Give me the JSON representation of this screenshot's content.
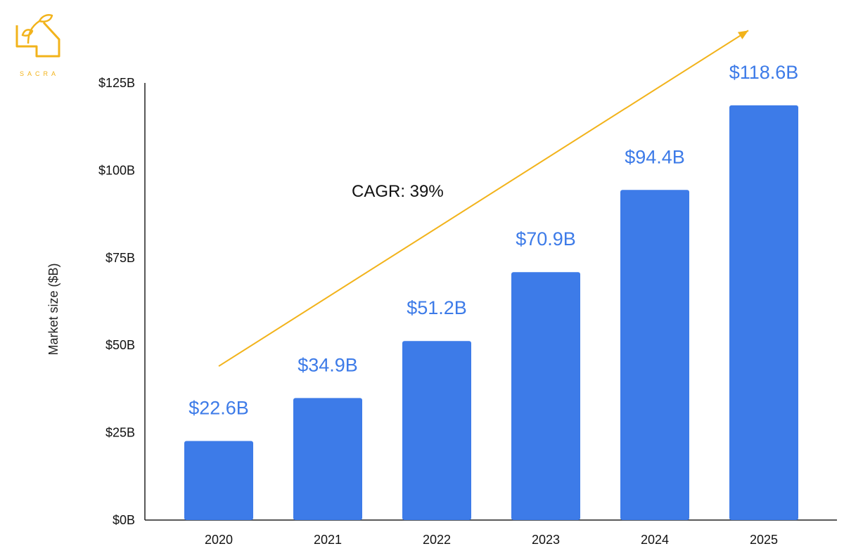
{
  "brand": {
    "logo_text": "SACRA",
    "logo_color": "#F2B31B"
  },
  "chart_data": {
    "type": "bar",
    "categories": [
      "2020",
      "2021",
      "2022",
      "2023",
      "2024",
      "2025"
    ],
    "values": [
      22.6,
      34.9,
      51.2,
      70.9,
      94.4,
      118.6
    ],
    "data_labels": [
      "$22.6B",
      "$34.9B",
      "$51.2B",
      "$70.9B",
      "$94.4B",
      "$118.6B"
    ],
    "title": "",
    "xlabel": "",
    "ylabel": "Market size ($B)",
    "ylim": [
      0,
      125
    ],
    "yticks": [
      0,
      25,
      50,
      75,
      100,
      125
    ],
    "ytick_labels": [
      "$0B",
      "$25B",
      "$50B",
      "$75B",
      "$100B",
      "$125B"
    ],
    "grid": false,
    "annotation": {
      "text": "CAGR: 39%",
      "arrow": "up-right"
    },
    "colors": {
      "bar": "#3D7BE8",
      "data_label": "#3D7BE8",
      "arrow": "#F2B31B",
      "axis": "#222222"
    }
  }
}
